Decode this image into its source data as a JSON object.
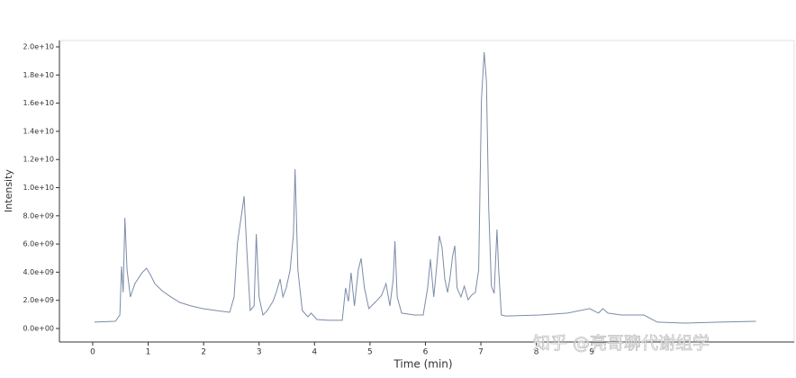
{
  "chart_data": {
    "type": "line",
    "x_label": "Time (min)",
    "y_label": "Intensity",
    "watermark": "知乎 @亮哥聊代谢组学",
    "color": "#7b8ba8",
    "x": [
      0.03,
      0.41,
      0.49,
      0.52,
      0.55,
      0.58,
      0.62,
      0.68,
      0.76,
      0.89,
      0.97,
      1.04,
      1.12,
      1.25,
      1.41,
      1.57,
      1.77,
      1.98,
      2.22,
      2.47,
      2.55,
      2.61,
      2.68,
      2.73,
      2.78,
      2.84,
      2.91,
      2.95,
      3.0,
      3.07,
      3.15,
      3.25,
      3.31,
      3.38,
      3.43,
      3.49,
      3.56,
      3.62,
      3.65,
      3.7,
      3.78,
      3.88,
      3.94,
      4.04,
      4.25,
      4.5,
      4.56,
      4.61,
      4.66,
      4.72,
      4.79,
      4.84,
      4.9,
      4.98,
      5.11,
      5.21,
      5.29,
      5.36,
      5.42,
      5.45,
      5.49,
      5.57,
      5.8,
      5.96,
      6.04,
      6.09,
      6.15,
      6.2,
      6.25,
      6.3,
      6.35,
      6.4,
      6.44,
      6.49,
      6.53,
      6.57,
      6.64,
      6.7,
      6.77,
      6.83,
      6.9,
      6.96,
      7.01,
      7.06,
      7.1,
      7.14,
      7.19,
      7.24,
      7.29,
      7.32,
      7.37,
      7.45,
      8.07,
      8.56,
      8.96,
      9.12,
      9.2,
      9.29,
      9.53,
      9.94,
      10.18,
      10.67,
      11.31,
      11.96
    ],
    "values": [
      450000000.0,
      510000000.0,
      960000000.0,
      4410000000.0,
      2560000000.0,
      7860000000.0,
      4150000000.0,
      2240000000.0,
      3190000000.0,
      3960000000.0,
      4280000000.0,
      3830000000.0,
      3190000000.0,
      2680000000.0,
      2240000000.0,
      1850000000.0,
      1600000000.0,
      1410000000.0,
      1280000000.0,
      1150000000.0,
      2240000000.0,
      6070000000.0,
      7990000000.0,
      9390000000.0,
      5430000000.0,
      1280000000.0,
      1600000000.0,
      6710000000.0,
      2240000000.0,
      960000000.0,
      1280000000.0,
      1920000000.0,
      2560000000.0,
      3510000000.0,
      2240000000.0,
      2880000000.0,
      4150000000.0,
      6710000000.0,
      11310000000.0,
      4150000000.0,
      1280000000.0,
      830000000.0,
      1090000000.0,
      640000000.0,
      580000000.0,
      580000000.0,
      2880000000.0,
      1920000000.0,
      3960000000.0,
      1600000000.0,
      4150000000.0,
      4980000000.0,
      2880000000.0,
      1410000000.0,
      1920000000.0,
      2360000000.0,
      3190000000.0,
      1600000000.0,
      3510000000.0,
      6200000000.0,
      2240000000.0,
      1090000000.0,
      960000000.0,
      960000000.0,
      2880000000.0,
      4920000000.0,
      2240000000.0,
      4280000000.0,
      6580000000.0,
      5750000000.0,
      3510000000.0,
      2560000000.0,
      3510000000.0,
      5110000000.0,
      5880000000.0,
      2880000000.0,
      2240000000.0,
      3000000000.0,
      2040000000.0,
      2360000000.0,
      2560000000.0,
      4150000000.0,
      16290000000.0,
      19620000000.0,
      17570000000.0,
      8630000000.0,
      3000000000.0,
      2490000000.0,
      7030000000.0,
      4150000000.0,
      960000000.0,
      890000000.0,
      960000000.0,
      1090000000.0,
      1410000000.0,
      1090000000.0,
      1410000000.0,
      1090000000.0,
      960000000.0,
      960000000.0,
      450000000.0,
      380000000.0,
      450000000.0,
      510000000.0
    ],
    "xlim": [
      -0.6,
      12.65
    ],
    "xticks": [
      0,
      1,
      2,
      3,
      4,
      5,
      6,
      7,
      8,
      9
    ],
    "ylim": [
      -960000000.0,
      20450000000.0
    ],
    "yticks": [
      {
        "value": 0,
        "label": "0.0e+00"
      },
      {
        "value": 2000000000.0,
        "label": "2.0e+09"
      },
      {
        "value": 4000000000.0,
        "label": "4.0e+09"
      },
      {
        "value": 6000000000.0,
        "label": "6.0e+09"
      },
      {
        "value": 8000000000.0,
        "label": "8.0e+09"
      },
      {
        "value": 10000000000.0,
        "label": "1.0e+10"
      },
      {
        "value": 12000000000.0,
        "label": "1.2e+10"
      },
      {
        "value": 14000000000.0,
        "label": "1.4e+10"
      },
      {
        "value": 16000000000.0,
        "label": "1.6e+10"
      },
      {
        "value": 18000000000.0,
        "label": "1.8e+10"
      },
      {
        "value": 20000000000.0,
        "label": "2.0e+10"
      }
    ]
  }
}
